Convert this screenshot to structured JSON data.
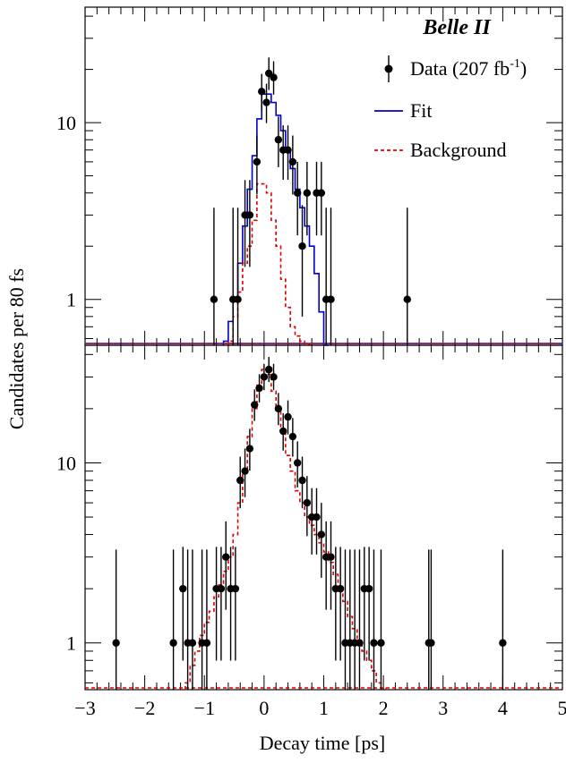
{
  "chart_data": {
    "type": "scatter",
    "ylabel": "Candidates per 80 fs",
    "xlabel": "Decay time [ps]",
    "xlim": [
      -3,
      5
    ],
    "x_ticks": [
      "−3",
      "−2",
      "−1",
      "0",
      "1",
      "2",
      "3",
      "4",
      "5"
    ],
    "annotation": "Belle II",
    "legend": {
      "placement": "top-right",
      "entries": [
        {
          "key": "data",
          "label": "Data (207 fb",
          "superscript": "-1",
          "suffix": ")"
        },
        {
          "key": "fit",
          "label": "Fit"
        },
        {
          "key": "background",
          "label": "Background"
        }
      ]
    },
    "colors": {
      "data": "#000000",
      "fit": "#0000cc",
      "background": "#e00000"
    },
    "panels": [
      {
        "id": "top",
        "log_y": true,
        "ylim": [
          0.55,
          45
        ],
        "y_ticks": [
          {
            "value": 1,
            "label": "1"
          },
          {
            "value": 10,
            "label": "10"
          }
        ],
        "series": [
          {
            "key": "data",
            "style": "points",
            "points": [
              [
                -0.84,
                1
              ],
              [
                -0.52,
                1
              ],
              [
                -0.44,
                1
              ],
              [
                -0.32,
                3
              ],
              [
                -0.24,
                3
              ],
              [
                -0.12,
                6
              ],
              [
                -0.04,
                15
              ],
              [
                0.04,
                13
              ],
              [
                0.08,
                19
              ],
              [
                0.16,
                18
              ],
              [
                0.24,
                8
              ],
              [
                0.32,
                7
              ],
              [
                0.4,
                7
              ],
              [
                0.48,
                6
              ],
              [
                0.56,
                4
              ],
              [
                0.64,
                2
              ],
              [
                0.72,
                4
              ],
              [
                0.88,
                4
              ],
              [
                0.96,
                4
              ],
              [
                1.04,
                1
              ],
              [
                1.12,
                1
              ],
              [
                2.4,
                1
              ]
            ]
          },
          {
            "key": "fit",
            "style": "step",
            "points": [
              [
                -0.64,
                0.58
              ],
              [
                -0.56,
                0.75
              ],
              [
                -0.48,
                1.0
              ],
              [
                -0.4,
                1.6
              ],
              [
                -0.32,
                2.6
              ],
              [
                -0.24,
                4.2
              ],
              [
                -0.16,
                6.5
              ],
              [
                -0.08,
                10.5
              ],
              [
                0.0,
                14.5
              ],
              [
                0.08,
                14.5
              ],
              [
                0.16,
                13.0
              ],
              [
                0.24,
                11.0
              ],
              [
                0.32,
                9.0
              ],
              [
                0.4,
                7.0
              ],
              [
                0.48,
                5.5
              ],
              [
                0.56,
                4.2
              ],
              [
                0.64,
                3.3
              ],
              [
                0.72,
                2.6
              ],
              [
                0.8,
                2.0
              ],
              [
                0.88,
                1.4
              ],
              [
                0.96,
                0.85
              ],
              [
                1.04,
                0.55
              ]
            ]
          },
          {
            "key": "background",
            "style": "step-dashed",
            "points": [
              [
                -0.56,
                0.58
              ],
              [
                -0.48,
                0.8
              ],
              [
                -0.4,
                1.1
              ],
              [
                -0.32,
                1.6
              ],
              [
                -0.24,
                2.0
              ],
              [
                -0.16,
                2.8
              ],
              [
                -0.08,
                4.5
              ],
              [
                0.0,
                4.5
              ],
              [
                0.08,
                4.0
              ],
              [
                0.16,
                2.8
              ],
              [
                0.24,
                2.0
              ],
              [
                0.32,
                1.3
              ],
              [
                0.4,
                0.9
              ],
              [
                0.48,
                0.7
              ],
              [
                0.56,
                0.62
              ],
              [
                0.64,
                0.58
              ],
              [
                0.72,
                0.56
              ]
            ]
          }
        ]
      },
      {
        "id": "bottom",
        "log_y": true,
        "ylim": [
          0.55,
          45
        ],
        "y_ticks": [
          {
            "value": 1,
            "label": "1"
          },
          {
            "value": 10,
            "label": "10"
          }
        ],
        "series": [
          {
            "key": "data",
            "style": "points",
            "points": [
              [
                -2.48,
                1
              ],
              [
                -1.52,
                1
              ],
              [
                -1.36,
                2
              ],
              [
                -1.28,
                1
              ],
              [
                -1.2,
                1
              ],
              [
                -1.04,
                1
              ],
              [
                -0.96,
                1
              ],
              [
                -0.8,
                2
              ],
              [
                -0.72,
                2
              ],
              [
                -0.64,
                3
              ],
              [
                -0.56,
                2
              ],
              [
                -0.48,
                2
              ],
              [
                -0.4,
                8
              ],
              [
                -0.32,
                9
              ],
              [
                -0.24,
                12
              ],
              [
                -0.16,
                21
              ],
              [
                -0.08,
                26
              ],
              [
                0.0,
                30
              ],
              [
                0.08,
                33
              ],
              [
                0.16,
                30
              ],
              [
                0.24,
                20
              ],
              [
                0.32,
                15
              ],
              [
                0.4,
                18
              ],
              [
                0.48,
                14
              ],
              [
                0.56,
                10
              ],
              [
                0.64,
                8
              ],
              [
                0.72,
                6
              ],
              [
                0.8,
                5
              ],
              [
                0.88,
                5
              ],
              [
                0.96,
                4
              ],
              [
                1.04,
                3
              ],
              [
                1.12,
                3
              ],
              [
                1.2,
                2
              ],
              [
                1.28,
                2
              ],
              [
                1.36,
                1
              ],
              [
                1.44,
                1
              ],
              [
                1.52,
                1
              ],
              [
                1.6,
                1
              ],
              [
                1.68,
                2
              ],
              [
                1.76,
                2
              ],
              [
                1.84,
                1
              ],
              [
                1.96,
                1
              ],
              [
                2.76,
                1
              ],
              [
                2.8,
                1
              ],
              [
                4.0,
                1
              ]
            ]
          },
          {
            "key": "background",
            "style": "step-dashed",
            "points": [
              [
                -1.28,
                0.6
              ],
              [
                -1.2,
                0.75
              ],
              [
                -1.12,
                0.9
              ],
              [
                -1.04,
                1.1
              ],
              [
                -0.96,
                1.3
              ],
              [
                -0.88,
                1.5
              ],
              [
                -0.8,
                1.8
              ],
              [
                -0.72,
                2.1
              ],
              [
                -0.64,
                2.5
              ],
              [
                -0.56,
                3.0
              ],
              [
                -0.48,
                4.0
              ],
              [
                -0.4,
                6.0
              ],
              [
                -0.32,
                9.0
              ],
              [
                -0.24,
                14.0
              ],
              [
                -0.16,
                20.0
              ],
              [
                -0.08,
                27.0
              ],
              [
                0.0,
                33.0
              ],
              [
                0.08,
                31.0
              ],
              [
                0.16,
                25.0
              ],
              [
                0.24,
                20.0
              ],
              [
                0.32,
                15.0
              ],
              [
                0.4,
                11.0
              ],
              [
                0.48,
                9.0
              ],
              [
                0.56,
                7.0
              ],
              [
                0.64,
                6.0
              ],
              [
                0.72,
                5.0
              ],
              [
                0.8,
                4.5
              ],
              [
                0.88,
                4.0
              ],
              [
                0.96,
                3.6
              ],
              [
                1.04,
                3.2
              ],
              [
                1.12,
                2.8
              ],
              [
                1.2,
                2.4
              ],
              [
                1.28,
                2.0
              ],
              [
                1.36,
                1.7
              ],
              [
                1.44,
                1.4
              ],
              [
                1.52,
                1.2
              ],
              [
                1.6,
                1.0
              ],
              [
                1.68,
                0.9
              ],
              [
                1.76,
                0.8
              ],
              [
                1.84,
                0.7
              ],
              [
                1.92,
                0.6
              ],
              [
                2.0,
                0.56
              ]
            ]
          }
        ]
      }
    ]
  }
}
